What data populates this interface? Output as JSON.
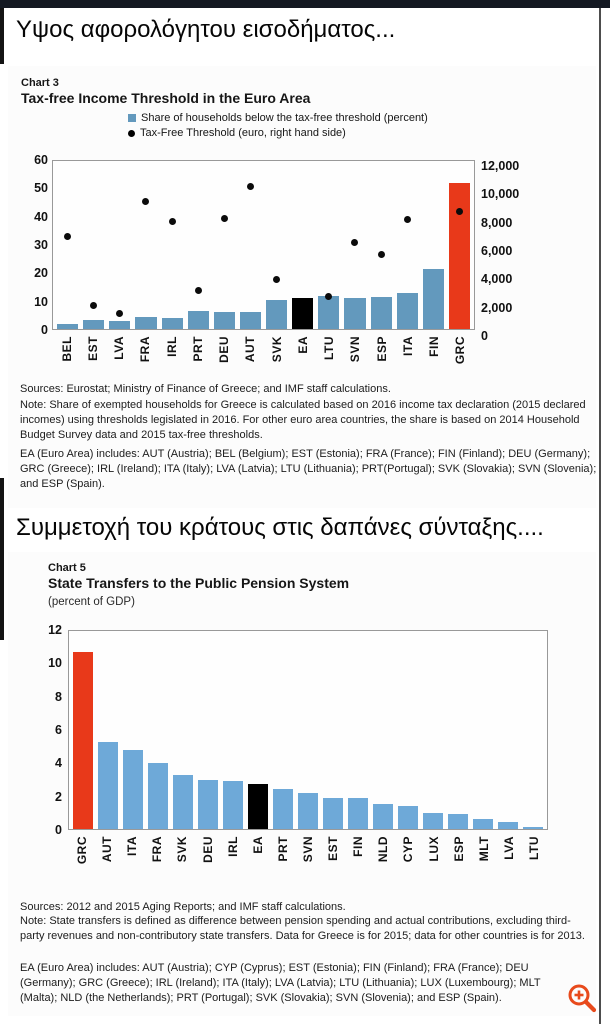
{
  "page": {
    "heading1": "Υψος αφορολόγητου εισοδήματος...",
    "heading2": "Συμμετοχή του κράτους στις δαπάνες σύνταξης...."
  },
  "colors": {
    "topbar": "#141922",
    "accent_red": "#e8391a",
    "bar_blue_chart3": "#6399bd",
    "bar_blue_chart5": "#6ea9d8",
    "highlight_black": "#000000",
    "zoom_icon_orange": "#e84a1c"
  },
  "chart_data": [
    {
      "id": "chart3",
      "type": "bar",
      "chart_label": "Chart 3",
      "title": "Tax-free Income Threshold in the Euro Area",
      "legend": [
        {
          "marker": "square",
          "color": "#6399bd",
          "text": "Share of households below the tax-free threshold (percent)"
        },
        {
          "marker": "dot",
          "color": "#000000",
          "text": "Tax-Free Threshold (euro, right hand side)"
        }
      ],
      "legend_position": "top",
      "grid": false,
      "categories": [
        "BEL",
        "EST",
        "LVA",
        "FRA",
        "IRL",
        "PRT",
        "DEU",
        "AUT",
        "SVK",
        "EA",
        "LTU",
        "SVN",
        "ESP",
        "ITA",
        "FIN",
        "GRC"
      ],
      "series": [
        {
          "name": "Share of households below the tax-free threshold (percent)",
          "type": "bar",
          "axis": "left",
          "values": [
            1.8,
            3.3,
            3.0,
            4.3,
            4.0,
            6.4,
            6.2,
            6.2,
            10.3,
            11.0,
            11.7,
            11.2,
            11.4,
            13.0,
            21.5,
            52.0
          ]
        },
        {
          "name": "Tax-Free Threshold (euro, right hand side)",
          "type": "scatter",
          "axis": "right",
          "values": [
            6600,
            1700,
            1100,
            9100,
            7700,
            2750,
            7900,
            10200,
            3550,
            null,
            2350,
            6200,
            5300,
            7800,
            null,
            8400
          ]
        }
      ],
      "left_axis": {
        "min": 0,
        "max": 60,
        "ticks": [
          "60",
          "50",
          "40",
          "30",
          "20",
          "10",
          "0"
        ]
      },
      "right_axis": {
        "min": 0,
        "max": 12000,
        "ticks": [
          "12,000",
          "10,000",
          "8,000",
          "6,000",
          "4,000",
          "2,000",
          "0"
        ]
      },
      "bar_default_color": "#6399bd",
      "bar_colors": {
        "EA": "#000000",
        "GRC": "#e8391a"
      },
      "sources": "Sources: Eurostat; Ministry of Finance of Greece; and IMF staff calculations.",
      "note": "Note: Share of exempted households for Greece is calculated based on 2016 income tax declaration (2015 declared incomes) using thresholds legislated in 2016. For other euro area countries, the share is based on 2014 Household Budget Survey data and 2015 tax-free thresholds.",
      "ea_note": "EA (Euro Area) includes: AUT (Austria); BEL (Belgium); EST (Estonia); FRA (France); FIN (Finland); DEU (Germany); GRC (Greece); IRL (Ireland); ITA (Italy); LVA (Latvia); LTU (Lithuania); PRT(Portugal); SVK (Slovakia); SVN (Slovenia); and ESP (Spain)."
    },
    {
      "id": "chart5",
      "type": "bar",
      "chart_label": "Chart 5",
      "title": "State Transfers to the Public Pension System",
      "subtitle": "(percent of GDP)",
      "grid": false,
      "categories": [
        "GRC",
        "AUT",
        "ITA",
        "FRA",
        "SVK",
        "DEU",
        "IRL",
        "EA",
        "PRT",
        "SVN",
        "EST",
        "FIN",
        "NLD",
        "CYP",
        "LUX",
        "ESP",
        "MLT",
        "LVA",
        "LTU"
      ],
      "series": [
        {
          "name": "State transfers (percent of GDP)",
          "type": "bar",
          "axis": "left",
          "values": [
            10.7,
            5.3,
            4.8,
            4.0,
            3.3,
            3.0,
            2.9,
            2.7,
            2.4,
            2.2,
            1.9,
            1.9,
            1.5,
            1.4,
            0.95,
            0.9,
            0.6,
            0.4,
            0.15
          ]
        }
      ],
      "left_axis": {
        "min": 0,
        "max": 12,
        "ticks": [
          "12",
          "10",
          "8",
          "6",
          "4",
          "2",
          "0"
        ]
      },
      "bar_default_color": "#6ea9d8",
      "bar_colors": {
        "EA": "#000000",
        "GRC": "#e8391a"
      },
      "sources": "Sources: 2012 and 2015 Aging Reports; and IMF staff calculations.",
      "note": "Note: State transfers is defined as difference between pension spending and actual contributions, excluding third-party revenues and non-contributory state transfers. Data for Greece is for 2015; data for other countries is for 2013.",
      "ea_note": "EA (Euro Area) includes: AUT (Austria); CYP (Cyprus); EST (Estonia); FIN (Finland); FRA (France); DEU (Germany); GRC (Greece); IRL (Ireland); ITA (Italy); LVA (Latvia); LTU (Lithuania); LUX (Luxembourg); MLT (Malta); NLD (the Netherlands); PRT (Portugal); SVK (Slovakia); SVN (Slovenia); and ESP (Spain)."
    }
  ]
}
